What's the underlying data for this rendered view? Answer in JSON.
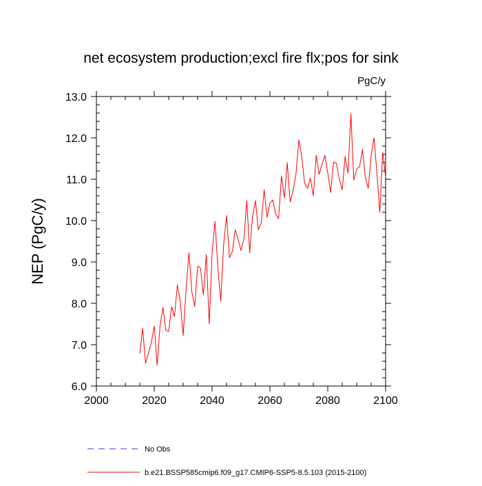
{
  "chart_data": {
    "type": "line",
    "title": "net ecosystem production;excl fire flx;pos for sink",
    "units_label": "PgC/y",
    "xlabel": "",
    "ylabel": "NEP  (PgC/y)",
    "xlim": [
      2000,
      2100
    ],
    "ylim": [
      6.0,
      13.0
    ],
    "x_ticks": [
      2000,
      2020,
      2040,
      2060,
      2080,
      2100
    ],
    "x_tick_labels": [
      "2000",
      "2020",
      "2040",
      "2060",
      "2080",
      "2100"
    ],
    "y_ticks": [
      6.0,
      7.0,
      8.0,
      9.0,
      10.0,
      11.0,
      12.0,
      13.0
    ],
    "y_tick_labels": [
      "6.0",
      "7.0",
      "8.0",
      "9.0",
      "10.0",
      "11.0",
      "12.0",
      "13.0"
    ],
    "legend_position": "bottom",
    "series": [
      {
        "name": "No Obs",
        "color": "#3333ff",
        "dash": "dashed",
        "x": [],
        "values": []
      },
      {
        "name": "b.e21.BSSP585cmip6.f09_g17.CMIP6-SSP5-8.5.103 (2015-2100)",
        "color": "#ff0000",
        "dash": "solid",
        "x": [
          2015,
          2016,
          2017,
          2018,
          2019,
          2020,
          2021,
          2022,
          2023,
          2024,
          2025,
          2026,
          2027,
          2028,
          2029,
          2030,
          2031,
          2032,
          2033,
          2034,
          2035,
          2036,
          2037,
          2038,
          2039,
          2040,
          2041,
          2042,
          2043,
          2044,
          2045,
          2046,
          2047,
          2048,
          2049,
          2050,
          2051,
          2052,
          2053,
          2054,
          2055,
          2056,
          2057,
          2058,
          2059,
          2060,
          2061,
          2062,
          2063,
          2064,
          2065,
          2066,
          2067,
          2068,
          2069,
          2070,
          2071,
          2072,
          2073,
          2074,
          2075,
          2076,
          2077,
          2078,
          2079,
          2080,
          2081,
          2082,
          2083,
          2084,
          2085,
          2086,
          2087,
          2088,
          2089,
          2090,
          2091,
          2092,
          2093,
          2094,
          2095,
          2096,
          2097,
          2098,
          2099,
          2100
        ],
        "values": [
          6.78,
          7.4,
          6.55,
          6.8,
          7.05,
          7.45,
          6.5,
          7.45,
          7.9,
          7.35,
          7.32,
          7.92,
          7.68,
          8.45,
          8.05,
          7.22,
          8.32,
          9.22,
          8.28,
          7.92,
          8.9,
          8.85,
          8.2,
          9.18,
          7.5,
          9.2,
          9.98,
          8.85,
          8.05,
          9.42,
          10.12,
          9.1,
          9.25,
          9.78,
          9.55,
          9.28,
          9.55,
          10.48,
          9.22,
          10.1,
          10.48,
          9.78,
          9.95,
          10.75,
          10.08,
          10.42,
          10.5,
          10.15,
          10.05,
          11.08,
          10.55,
          11.4,
          10.45,
          10.72,
          11.12,
          11.95,
          11.55,
          10.9,
          10.78,
          11.02,
          10.6,
          11.58,
          11.12,
          11.35,
          11.58,
          11.15,
          10.68,
          11.42,
          11.38,
          11.0,
          10.75,
          11.55,
          11.15,
          12.58,
          10.98,
          11.25,
          11.3,
          11.72,
          11.05,
          10.78,
          11.58,
          12.0,
          11.15,
          10.2,
          11.65,
          11.05
        ]
      }
    ]
  }
}
